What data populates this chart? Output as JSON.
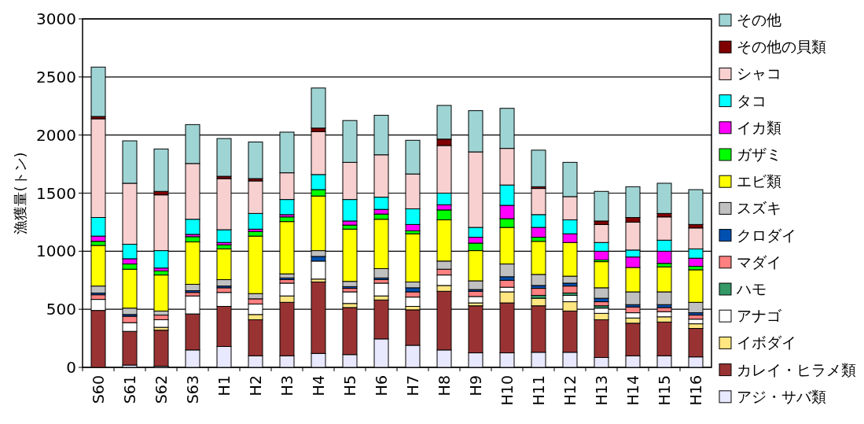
{
  "chart_data": {
    "type": "bar",
    "stacked": true,
    "ylabel": "漁獲量(トン)",
    "ylim": [
      0,
      3000
    ],
    "yticks": [
      0,
      500,
      1000,
      1500,
      2000,
      2500,
      3000
    ],
    "grid": "y",
    "legend": "right",
    "categories": [
      "S60",
      "S61",
      "S62",
      "S63",
      "H1",
      "H2",
      "H3",
      "H4",
      "H5",
      "H6",
      "H7",
      "H8",
      "H9",
      "H10",
      "H11",
      "H12",
      "H13",
      "H14",
      "H15",
      "H16"
    ],
    "series": [
      {
        "name": "アジ・サバ類",
        "color": "#e8e8ff",
        "values": [
          0,
          20,
          10,
          150,
          180,
          100,
          100,
          120,
          110,
          245,
          190,
          150,
          125,
          125,
          130,
          130,
          85,
          100,
          100,
          90
        ]
      },
      {
        "name": "カレイ・ヒラメ類",
        "color": "#993333",
        "values": [
          490,
          290,
          310,
          310,
          345,
          310,
          460,
          615,
          405,
          335,
          305,
          505,
          405,
          430,
          400,
          355,
          325,
          280,
          290,
          245
        ]
      },
      {
        "name": "イボダイ",
        "color": "#ffe680",
        "values": [
          0,
          0,
          25,
          0,
          0,
          45,
          55,
          25,
          35,
          35,
          30,
          50,
          25,
          95,
          65,
          80,
          55,
          45,
          45,
          40
        ]
      },
      {
        "name": "アナゴ",
        "color": "#ffffff",
        "values": [
          95,
          75,
          65,
          155,
          120,
          90,
          110,
          155,
          100,
          110,
          80,
          90,
          55,
          40,
          0,
          55,
          45,
          45,
          45,
          40
        ]
      },
      {
        "name": "ハモ",
        "color": "#339966",
        "values": [
          0,
          0,
          0,
          0,
          0,
          0,
          0,
          0,
          0,
          0,
          0,
          0,
          0,
          0,
          25,
          20,
          20,
          0,
          0,
          0
        ]
      },
      {
        "name": "マダイ",
        "color": "#ff8080",
        "values": [
          40,
          55,
          40,
          30,
          40,
          45,
          30,
          0,
          30,
          30,
          45,
          50,
          45,
          60,
          60,
          60,
          35,
          50,
          35,
          35
        ]
      },
      {
        "name": "クロダイ",
        "color": "#0050b0",
        "values": [
          15,
          15,
          null,
          15,
          15,
          0,
          15,
          40,
          15,
          15,
          35,
          0,
          15,
          30,
          25,
          25,
          30,
          20,
          25,
          20
        ]
      },
      {
        "name": "スズキ",
        "color": "#c0c0c0",
        "values": [
          60,
          55,
          35,
          55,
          55,
          45,
          35,
          50,
          45,
          80,
          50,
          70,
          75,
          110,
          95,
          60,
          90,
          110,
          110,
          90
        ]
      },
      {
        "name": "エビ類",
        "color": "#ffff00",
        "values": [
          350,
          335,
          310,
          365,
          265,
          495,
          450,
          470,
          450,
          425,
          415,
          355,
          260,
          315,
          285,
          290,
          225,
          210,
          215,
          280
        ]
      },
      {
        "name": "ガザミ",
        "color": "#00ff00",
        "values": [
          35,
          45,
          35,
          45,
          35,
          40,
          40,
          55,
          35,
          45,
          25,
          85,
          65,
          75,
          35,
          0,
          15,
          0,
          30,
          30
        ]
      },
      {
        "name": "イカ類",
        "color": "#ff00ff",
        "values": [
          45,
          45,
          25,
          20,
          20,
          20,
          20,
          0,
          35,
          40,
          55,
          45,
          50,
          115,
          85,
          75,
          75,
          90,
          105,
          70
        ]
      },
      {
        "name": "タコ",
        "color": "#00ffff",
        "values": [
          160,
          125,
          150,
          130,
          110,
          135,
          130,
          130,
          185,
          105,
          135,
          100,
          85,
          175,
          110,
          120,
          75,
          60,
          95,
          80
        ]
      },
      {
        "name": "シャコ",
        "color": "#f8d0d0",
        "values": [
          850,
          525,
          480,
          480,
          440,
          280,
          230,
          370,
          320,
          365,
          300,
          410,
          650,
          315,
          225,
          200,
          155,
          240,
          200,
          180
        ]
      },
      {
        "name": "その他の貝類",
        "color": "#800000",
        "values": [
          20,
          0,
          30,
          0,
          20,
          20,
          null,
          30,
          0,
          0,
          0,
          55,
          0,
          0,
          15,
          0,
          30,
          40,
          30,
          30
        ]
      },
      {
        "name": "その他",
        "color": "#9fd4d4",
        "values": [
          425,
          365,
          365,
          335,
          325,
          315,
          350,
          345,
          360,
          340,
          290,
          290,
          355,
          345,
          315,
          295,
          255,
          265,
          260,
          300
        ]
      }
    ]
  }
}
